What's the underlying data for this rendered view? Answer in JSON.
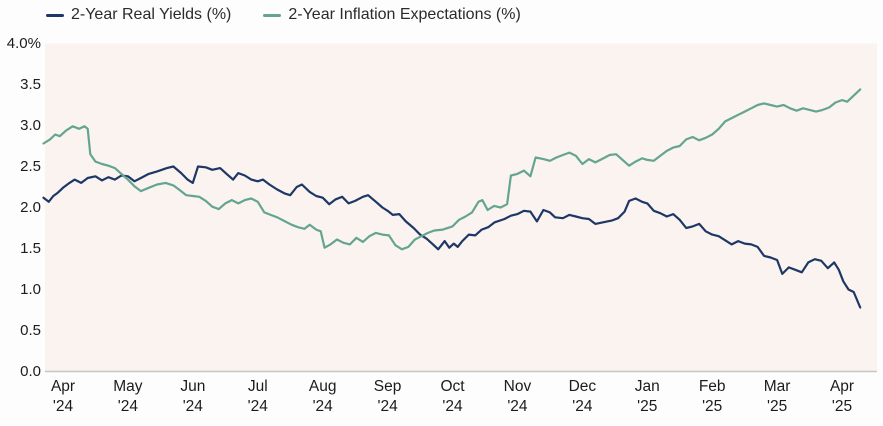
{
  "page": {
    "background": "#fefdfd"
  },
  "chart_data": {
    "type": "line",
    "title": "",
    "legend_position": "top-left",
    "grid": false,
    "plot_background": "#fbf3f0",
    "axis_line_color": "#c9c5c3",
    "ylim": [
      0.0,
      4.0
    ],
    "y_ticks": [
      {
        "label": "4.0%",
        "value": 4.0
      },
      {
        "label": "3.5",
        "value": 3.5
      },
      {
        "label": "3.0",
        "value": 3.0
      },
      {
        "label": "2.5",
        "value": 2.5
      },
      {
        "label": "2.0",
        "value": 2.0
      },
      {
        "label": "1.5",
        "value": 1.5
      },
      {
        "label": "1.0",
        "value": 1.0
      },
      {
        "label": "0.5",
        "value": 0.5
      },
      {
        "label": "0.0",
        "value": 0.0
      }
    ],
    "x_ticks": [
      {
        "month": "Apr",
        "year": "'24"
      },
      {
        "month": "May",
        "year": "'24"
      },
      {
        "month": "Jun",
        "year": "'24"
      },
      {
        "month": "Jul",
        "year": "'24"
      },
      {
        "month": "Aug",
        "year": "'24"
      },
      {
        "month": "Sep",
        "year": "'24"
      },
      {
        "month": "Oct",
        "year": "'24"
      },
      {
        "month": "Nov",
        "year": "'24"
      },
      {
        "month": "Dec",
        "year": "'24"
      },
      {
        "month": "Jan",
        "year": "'25"
      },
      {
        "month": "Feb",
        "year": "'25"
      },
      {
        "month": "Mar",
        "year": "'25"
      },
      {
        "month": "Apr",
        "year": "'25"
      }
    ],
    "x_unit": "months after Apr '24 tick",
    "series": [
      {
        "name": "2-Year Real Yields (%)",
        "color": "#1d3866",
        "points": [
          [
            -0.3,
            2.12
          ],
          [
            -0.22,
            2.07
          ],
          [
            -0.15,
            2.14
          ],
          [
            -0.08,
            2.18
          ],
          [
            0.0,
            2.24
          ],
          [
            0.1,
            2.3
          ],
          [
            0.18,
            2.34
          ],
          [
            0.28,
            2.3
          ],
          [
            0.38,
            2.36
          ],
          [
            0.5,
            2.38
          ],
          [
            0.6,
            2.33
          ],
          [
            0.7,
            2.37
          ],
          [
            0.8,
            2.34
          ],
          [
            0.9,
            2.39
          ],
          [
            1.0,
            2.38
          ],
          [
            1.1,
            2.32
          ],
          [
            1.2,
            2.36
          ],
          [
            1.32,
            2.41
          ],
          [
            1.45,
            2.44
          ],
          [
            1.6,
            2.48
          ],
          [
            1.7,
            2.5
          ],
          [
            1.82,
            2.42
          ],
          [
            1.92,
            2.34
          ],
          [
            2.0,
            2.3
          ],
          [
            2.08,
            2.5
          ],
          [
            2.2,
            2.49
          ],
          [
            2.3,
            2.46
          ],
          [
            2.42,
            2.48
          ],
          [
            2.52,
            2.41
          ],
          [
            2.62,
            2.34
          ],
          [
            2.7,
            2.42
          ],
          [
            2.8,
            2.39
          ],
          [
            2.9,
            2.34
          ],
          [
            3.0,
            2.32
          ],
          [
            3.08,
            2.34
          ],
          [
            3.18,
            2.28
          ],
          [
            3.3,
            2.22
          ],
          [
            3.42,
            2.17
          ],
          [
            3.5,
            2.15
          ],
          [
            3.6,
            2.25
          ],
          [
            3.68,
            2.28
          ],
          [
            3.8,
            2.19
          ],
          [
            3.9,
            2.14
          ],
          [
            4.0,
            2.12
          ],
          [
            4.1,
            2.04
          ],
          [
            4.2,
            2.1
          ],
          [
            4.3,
            2.13
          ],
          [
            4.4,
            2.05
          ],
          [
            4.5,
            2.08
          ],
          [
            4.62,
            2.13
          ],
          [
            4.7,
            2.15
          ],
          [
            4.82,
            2.07
          ],
          [
            4.92,
            2.0
          ],
          [
            5.0,
            1.96
          ],
          [
            5.08,
            1.91
          ],
          [
            5.18,
            1.92
          ],
          [
            5.28,
            1.83
          ],
          [
            5.4,
            1.75
          ],
          [
            5.5,
            1.67
          ],
          [
            5.6,
            1.62
          ],
          [
            5.7,
            1.55
          ],
          [
            5.78,
            1.49
          ],
          [
            5.88,
            1.59
          ],
          [
            5.95,
            1.51
          ],
          [
            6.02,
            1.56
          ],
          [
            6.08,
            1.52
          ],
          [
            6.15,
            1.59
          ],
          [
            6.25,
            1.67
          ],
          [
            6.35,
            1.66
          ],
          [
            6.45,
            1.73
          ],
          [
            6.55,
            1.76
          ],
          [
            6.65,
            1.82
          ],
          [
            6.8,
            1.86
          ],
          [
            6.9,
            1.9
          ],
          [
            7.0,
            1.92
          ],
          [
            7.1,
            1.96
          ],
          [
            7.2,
            1.95
          ],
          [
            7.3,
            1.83
          ],
          [
            7.4,
            1.97
          ],
          [
            7.5,
            1.94
          ],
          [
            7.58,
            1.88
          ],
          [
            7.7,
            1.87
          ],
          [
            7.8,
            1.91
          ],
          [
            7.9,
            1.89
          ],
          [
            8.0,
            1.87
          ],
          [
            8.1,
            1.86
          ],
          [
            8.2,
            1.8
          ],
          [
            8.32,
            1.82
          ],
          [
            8.45,
            1.84
          ],
          [
            8.55,
            1.87
          ],
          [
            8.65,
            1.95
          ],
          [
            8.72,
            2.08
          ],
          [
            8.82,
            2.11
          ],
          [
            8.92,
            2.07
          ],
          [
            9.0,
            2.05
          ],
          [
            9.1,
            1.96
          ],
          [
            9.2,
            1.93
          ],
          [
            9.3,
            1.89
          ],
          [
            9.4,
            1.92
          ],
          [
            9.5,
            1.85
          ],
          [
            9.6,
            1.75
          ],
          [
            9.7,
            1.77
          ],
          [
            9.8,
            1.8
          ],
          [
            9.9,
            1.71
          ],
          [
            10.0,
            1.67
          ],
          [
            10.1,
            1.65
          ],
          [
            10.2,
            1.6
          ],
          [
            10.3,
            1.55
          ],
          [
            10.4,
            1.59
          ],
          [
            10.5,
            1.56
          ],
          [
            10.6,
            1.55
          ],
          [
            10.7,
            1.52
          ],
          [
            10.8,
            1.41
          ],
          [
            10.9,
            1.39
          ],
          [
            11.0,
            1.36
          ],
          [
            11.08,
            1.19
          ],
          [
            11.18,
            1.27
          ],
          [
            11.28,
            1.24
          ],
          [
            11.38,
            1.21
          ],
          [
            11.48,
            1.33
          ],
          [
            11.58,
            1.37
          ],
          [
            11.68,
            1.35
          ],
          [
            11.78,
            1.26
          ],
          [
            11.88,
            1.33
          ],
          [
            11.95,
            1.24
          ],
          [
            12.02,
            1.1
          ],
          [
            12.1,
            1.0
          ],
          [
            12.18,
            0.97
          ],
          [
            12.28,
            0.78
          ]
        ]
      },
      {
        "name": "2-Year Inflation Expectations (%)",
        "color": "#63a591",
        "points": [
          [
            -0.3,
            2.78
          ],
          [
            -0.2,
            2.83
          ],
          [
            -0.12,
            2.89
          ],
          [
            -0.05,
            2.87
          ],
          [
            0.05,
            2.94
          ],
          [
            0.15,
            2.99
          ],
          [
            0.25,
            2.96
          ],
          [
            0.33,
            2.99
          ],
          [
            0.38,
            2.96
          ],
          [
            0.42,
            2.65
          ],
          [
            0.5,
            2.56
          ],
          [
            0.6,
            2.53
          ],
          [
            0.7,
            2.51
          ],
          [
            0.8,
            2.48
          ],
          [
            0.9,
            2.41
          ],
          [
            1.0,
            2.34
          ],
          [
            1.1,
            2.26
          ],
          [
            1.2,
            2.2
          ],
          [
            1.32,
            2.24
          ],
          [
            1.45,
            2.28
          ],
          [
            1.58,
            2.3
          ],
          [
            1.7,
            2.27
          ],
          [
            1.8,
            2.21
          ],
          [
            1.9,
            2.15
          ],
          [
            2.0,
            2.14
          ],
          [
            2.1,
            2.13
          ],
          [
            2.2,
            2.08
          ],
          [
            2.3,
            2.01
          ],
          [
            2.4,
            1.98
          ],
          [
            2.5,
            2.05
          ],
          [
            2.6,
            2.09
          ],
          [
            2.7,
            2.05
          ],
          [
            2.8,
            2.09
          ],
          [
            2.9,
            2.11
          ],
          [
            3.0,
            2.07
          ],
          [
            3.1,
            1.94
          ],
          [
            3.2,
            1.91
          ],
          [
            3.3,
            1.88
          ],
          [
            3.42,
            1.83
          ],
          [
            3.52,
            1.79
          ],
          [
            3.62,
            1.76
          ],
          [
            3.72,
            1.74
          ],
          [
            3.8,
            1.79
          ],
          [
            3.9,
            1.73
          ],
          [
            3.97,
            1.71
          ],
          [
            4.03,
            1.51
          ],
          [
            4.12,
            1.55
          ],
          [
            4.22,
            1.61
          ],
          [
            4.32,
            1.57
          ],
          [
            4.42,
            1.55
          ],
          [
            4.52,
            1.63
          ],
          [
            4.62,
            1.58
          ],
          [
            4.72,
            1.65
          ],
          [
            4.82,
            1.69
          ],
          [
            4.92,
            1.67
          ],
          [
            5.02,
            1.66
          ],
          [
            5.12,
            1.54
          ],
          [
            5.22,
            1.49
          ],
          [
            5.32,
            1.52
          ],
          [
            5.42,
            1.61
          ],
          [
            5.52,
            1.65
          ],
          [
            5.62,
            1.69
          ],
          [
            5.72,
            1.72
          ],
          [
            5.85,
            1.73
          ],
          [
            6.0,
            1.77
          ],
          [
            6.1,
            1.85
          ],
          [
            6.2,
            1.89
          ],
          [
            6.3,
            1.94
          ],
          [
            6.4,
            2.07
          ],
          [
            6.46,
            2.09
          ],
          [
            6.54,
            1.97
          ],
          [
            6.64,
            2.02
          ],
          [
            6.74,
            2.0
          ],
          [
            6.84,
            2.04
          ],
          [
            6.9,
            2.39
          ],
          [
            7.0,
            2.41
          ],
          [
            7.1,
            2.45
          ],
          [
            7.2,
            2.38
          ],
          [
            7.28,
            2.61
          ],
          [
            7.4,
            2.59
          ],
          [
            7.5,
            2.57
          ],
          [
            7.6,
            2.61
          ],
          [
            7.7,
            2.64
          ],
          [
            7.8,
            2.67
          ],
          [
            7.9,
            2.63
          ],
          [
            8.0,
            2.53
          ],
          [
            8.1,
            2.59
          ],
          [
            8.2,
            2.55
          ],
          [
            8.3,
            2.59
          ],
          [
            8.42,
            2.64
          ],
          [
            8.52,
            2.65
          ],
          [
            8.62,
            2.58
          ],
          [
            8.72,
            2.51
          ],
          [
            8.82,
            2.56
          ],
          [
            8.92,
            2.6
          ],
          [
            9.0,
            2.58
          ],
          [
            9.1,
            2.57
          ],
          [
            9.2,
            2.63
          ],
          [
            9.3,
            2.69
          ],
          [
            9.4,
            2.73
          ],
          [
            9.5,
            2.75
          ],
          [
            9.6,
            2.83
          ],
          [
            9.7,
            2.86
          ],
          [
            9.8,
            2.82
          ],
          [
            9.9,
            2.85
          ],
          [
            10.0,
            2.89
          ],
          [
            10.1,
            2.96
          ],
          [
            10.2,
            3.05
          ],
          [
            10.3,
            3.09
          ],
          [
            10.4,
            3.13
          ],
          [
            10.5,
            3.17
          ],
          [
            10.6,
            3.21
          ],
          [
            10.7,
            3.25
          ],
          [
            10.8,
            3.27
          ],
          [
            10.9,
            3.25
          ],
          [
            11.0,
            3.23
          ],
          [
            11.1,
            3.25
          ],
          [
            11.2,
            3.21
          ],
          [
            11.3,
            3.18
          ],
          [
            11.4,
            3.21
          ],
          [
            11.5,
            3.19
          ],
          [
            11.6,
            3.17
          ],
          [
            11.7,
            3.19
          ],
          [
            11.8,
            3.22
          ],
          [
            11.9,
            3.28
          ],
          [
            12.0,
            3.31
          ],
          [
            12.08,
            3.29
          ],
          [
            12.16,
            3.35
          ],
          [
            12.28,
            3.44
          ]
        ]
      }
    ]
  }
}
